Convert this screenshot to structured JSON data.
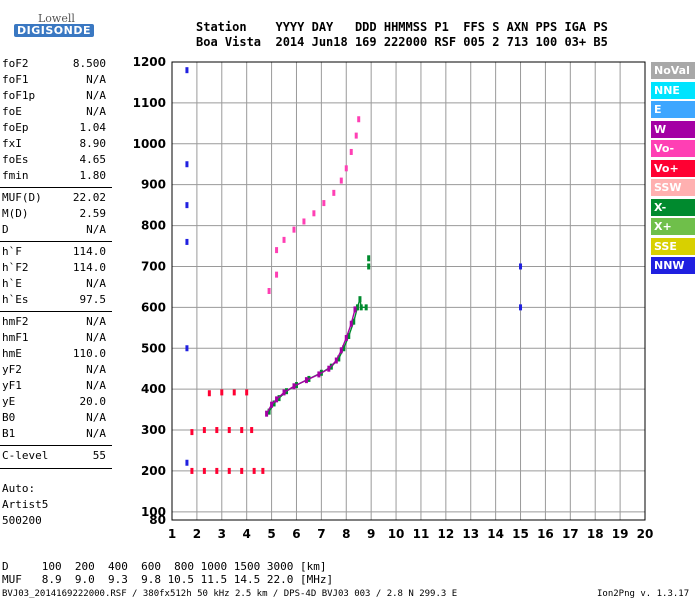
{
  "logo": {
    "line1": "Lowell",
    "line2": "DIGISONDE"
  },
  "header": {
    "row1": "Station    YYYY DAY   DDD HHMMSS P1  FFS S AXN PPS IGA PS",
    "row2": "Boa Vista  2014 Jun18 169 222000 RSF 005 2 713 100 03+ B5"
  },
  "params": [
    {
      "group": 0,
      "name": "foF2",
      "value": "8.500"
    },
    {
      "group": 0,
      "name": "foF1",
      "value": "N/A"
    },
    {
      "group": 0,
      "name": "foF1p",
      "value": "N/A"
    },
    {
      "group": 0,
      "name": "foE",
      "value": "N/A"
    },
    {
      "group": 0,
      "name": "foEp",
      "value": "1.04"
    },
    {
      "group": 0,
      "name": "fxI",
      "value": "8.90"
    },
    {
      "group": 0,
      "name": "foEs",
      "value": "4.65"
    },
    {
      "group": 0,
      "name": "fmin",
      "value": "1.80"
    },
    {
      "group": 1,
      "name": "MUF(D)",
      "value": "22.02"
    },
    {
      "group": 1,
      "name": "M(D)",
      "value": "2.59"
    },
    {
      "group": 1,
      "name": "D",
      "value": "N/A"
    },
    {
      "group": 2,
      "name": "h`F",
      "value": "114.0"
    },
    {
      "group": 2,
      "name": "h`F2",
      "value": "114.0"
    },
    {
      "group": 2,
      "name": "h`E",
      "value": "N/A"
    },
    {
      "group": 2,
      "name": "h`Es",
      "value": "97.5"
    },
    {
      "group": 3,
      "name": "hmF2",
      "value": "N/A"
    },
    {
      "group": 3,
      "name": "hmF1",
      "value": "N/A"
    },
    {
      "group": 3,
      "name": "hmE",
      "value": "110.0"
    },
    {
      "group": 3,
      "name": "yF2",
      "value": "N/A"
    },
    {
      "group": 3,
      "name": "yF1",
      "value": "N/A"
    },
    {
      "group": 3,
      "name": "yE",
      "value": "20.0"
    },
    {
      "group": 3,
      "name": "B0",
      "value": "N/A"
    },
    {
      "group": 3,
      "name": "B1",
      "value": "N/A"
    },
    {
      "group": 4,
      "name": "C-level",
      "value": "55"
    }
  ],
  "auto": {
    "line1": "Auto:",
    "line2": "Artist5",
    "line3": "500200"
  },
  "legend": [
    {
      "label": "NoVal",
      "color": "#a8a8a8"
    },
    {
      "label": "NNE",
      "color": "#00e4ff"
    },
    {
      "label": "E",
      "color": "#3ea6ff"
    },
    {
      "label": "W",
      "color": "#a400a4"
    },
    {
      "label": "Vo-",
      "color": "#ff3fb4"
    },
    {
      "label": "Vo+",
      "color": "#ff0032"
    },
    {
      "label": "SSW",
      "color": "#ffb0b0"
    },
    {
      "label": "X-",
      "color": "#008a2e"
    },
    {
      "label": "X+",
      "color": "#6fbf4a"
    },
    {
      "label": "SSE",
      "color": "#d8d000"
    },
    {
      "label": "NNW",
      "color": "#2020e0"
    }
  ],
  "chart_data": {
    "type": "scatter",
    "title": "",
    "xlabel": "",
    "ylabel": "",
    "xlim": [
      1,
      20
    ],
    "ylim": [
      80,
      1200
    ],
    "x_ticks": [
      1,
      2,
      3,
      4,
      5,
      6,
      7,
      8,
      9,
      10,
      11,
      12,
      13,
      14,
      15,
      16,
      17,
      18,
      19,
      20
    ],
    "y_ticks": [
      80,
      100,
      200,
      300,
      400,
      500,
      600,
      700,
      800,
      900,
      1000,
      1100,
      1200
    ],
    "grid": true,
    "series": [
      {
        "name": "X-",
        "color": "#008a2e",
        "points": [
          [
            4.9,
            345
          ],
          [
            5.1,
            365
          ],
          [
            5.3,
            378
          ],
          [
            5.6,
            395
          ],
          [
            6.0,
            410
          ],
          [
            6.5,
            425
          ],
          [
            7.0,
            440
          ],
          [
            7.4,
            455
          ],
          [
            7.7,
            475
          ],
          [
            7.9,
            500
          ],
          [
            8.1,
            530
          ],
          [
            8.3,
            565
          ],
          [
            8.45,
            600
          ],
          [
            8.55,
            620
          ],
          [
            8.6,
            600
          ],
          [
            8.8,
            600
          ],
          [
            8.9,
            700
          ],
          [
            8.9,
            720
          ]
        ]
      },
      {
        "name": "W",
        "color": "#a400a4",
        "points": [
          [
            4.8,
            340
          ],
          [
            5.0,
            362
          ],
          [
            5.2,
            375
          ],
          [
            5.5,
            392
          ],
          [
            5.9,
            407
          ],
          [
            6.4,
            422
          ],
          [
            6.9,
            436
          ],
          [
            7.3,
            450
          ],
          [
            7.6,
            470
          ],
          [
            7.8,
            495
          ],
          [
            8.0,
            525
          ],
          [
            8.2,
            560
          ],
          [
            8.35,
            595
          ]
        ]
      },
      {
        "name": "Vo-",
        "color": "#ff3fb4",
        "points": [
          [
            5.2,
            740
          ],
          [
            5.5,
            765
          ],
          [
            5.9,
            790
          ],
          [
            6.3,
            810
          ],
          [
            6.7,
            830
          ],
          [
            7.1,
            855
          ],
          [
            7.5,
            880
          ],
          [
            7.8,
            910
          ],
          [
            8.0,
            940
          ],
          [
            8.2,
            980
          ],
          [
            8.4,
            1020
          ],
          [
            8.5,
            1060
          ],
          [
            4.9,
            640
          ],
          [
            5.2,
            680
          ]
        ]
      },
      {
        "name": "Es",
        "color": "#ff0032",
        "points": [
          [
            1.8,
            200
          ],
          [
            2.3,
            200
          ],
          [
            2.8,
            200
          ],
          [
            3.3,
            200
          ],
          [
            3.8,
            200
          ],
          [
            4.3,
            200
          ],
          [
            4.65,
            200
          ],
          [
            1.8,
            295
          ],
          [
            2.3,
            300
          ],
          [
            2.8,
            300
          ],
          [
            3.3,
            300
          ],
          [
            3.8,
            300
          ],
          [
            4.2,
            300
          ],
          [
            2.5,
            390
          ],
          [
            3.0,
            392
          ],
          [
            3.5,
            392
          ],
          [
            4.0,
            392
          ]
        ]
      },
      {
        "name": "NNW",
        "color": "#2020e0",
        "points": [
          [
            1.6,
            1180
          ],
          [
            1.6,
            950
          ],
          [
            1.6,
            850
          ],
          [
            1.6,
            760
          ],
          [
            1.6,
            500
          ],
          [
            1.6,
            220
          ],
          [
            15.0,
            700
          ],
          [
            15.0,
            600
          ]
        ]
      }
    ]
  },
  "bottom": {
    "d_row": "D     100  200  400  600  800 1000 1500 3000 [km]",
    "muf_row": "MUF   8.9  9.0  9.3  9.8 10.5 11.5 14.5 22.0 [MHz]",
    "footer_left": "BVJ03_2014169222000.RSF / 380fx512h 50 kHz 2.5 km / DPS-4D BVJ03 003 / 2.8 N 299.3 E",
    "footer_right": "Ion2Png v. 1.3.17"
  }
}
